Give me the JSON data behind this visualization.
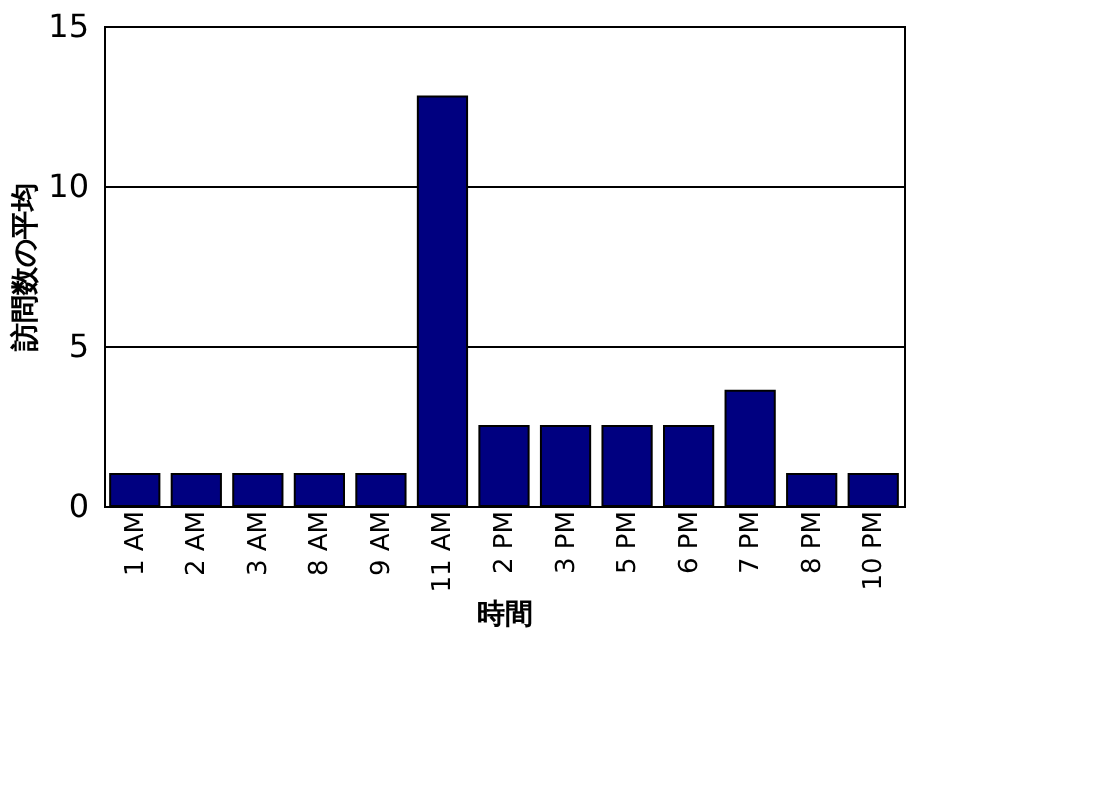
{
  "chart_data": {
    "type": "bar",
    "xlabel": "時間",
    "ylabel": "訪問数の平均",
    "categories": [
      "1 AM",
      "2 AM",
      "3 AM",
      "8 AM",
      "9 AM",
      "11 AM",
      "2 PM",
      "3 PM",
      "5 PM",
      "6 PM",
      "7 PM",
      "8 PM",
      "10 PM"
    ],
    "values": [
      1,
      1,
      1,
      1,
      1,
      12.8,
      2.5,
      2.5,
      2.5,
      2.5,
      3.6,
      1,
      1
    ],
    "color": "#000080",
    "ylim": [
      0,
      15
    ],
    "yticks": [
      0,
      5,
      10,
      15
    ],
    "grid": "y"
  }
}
